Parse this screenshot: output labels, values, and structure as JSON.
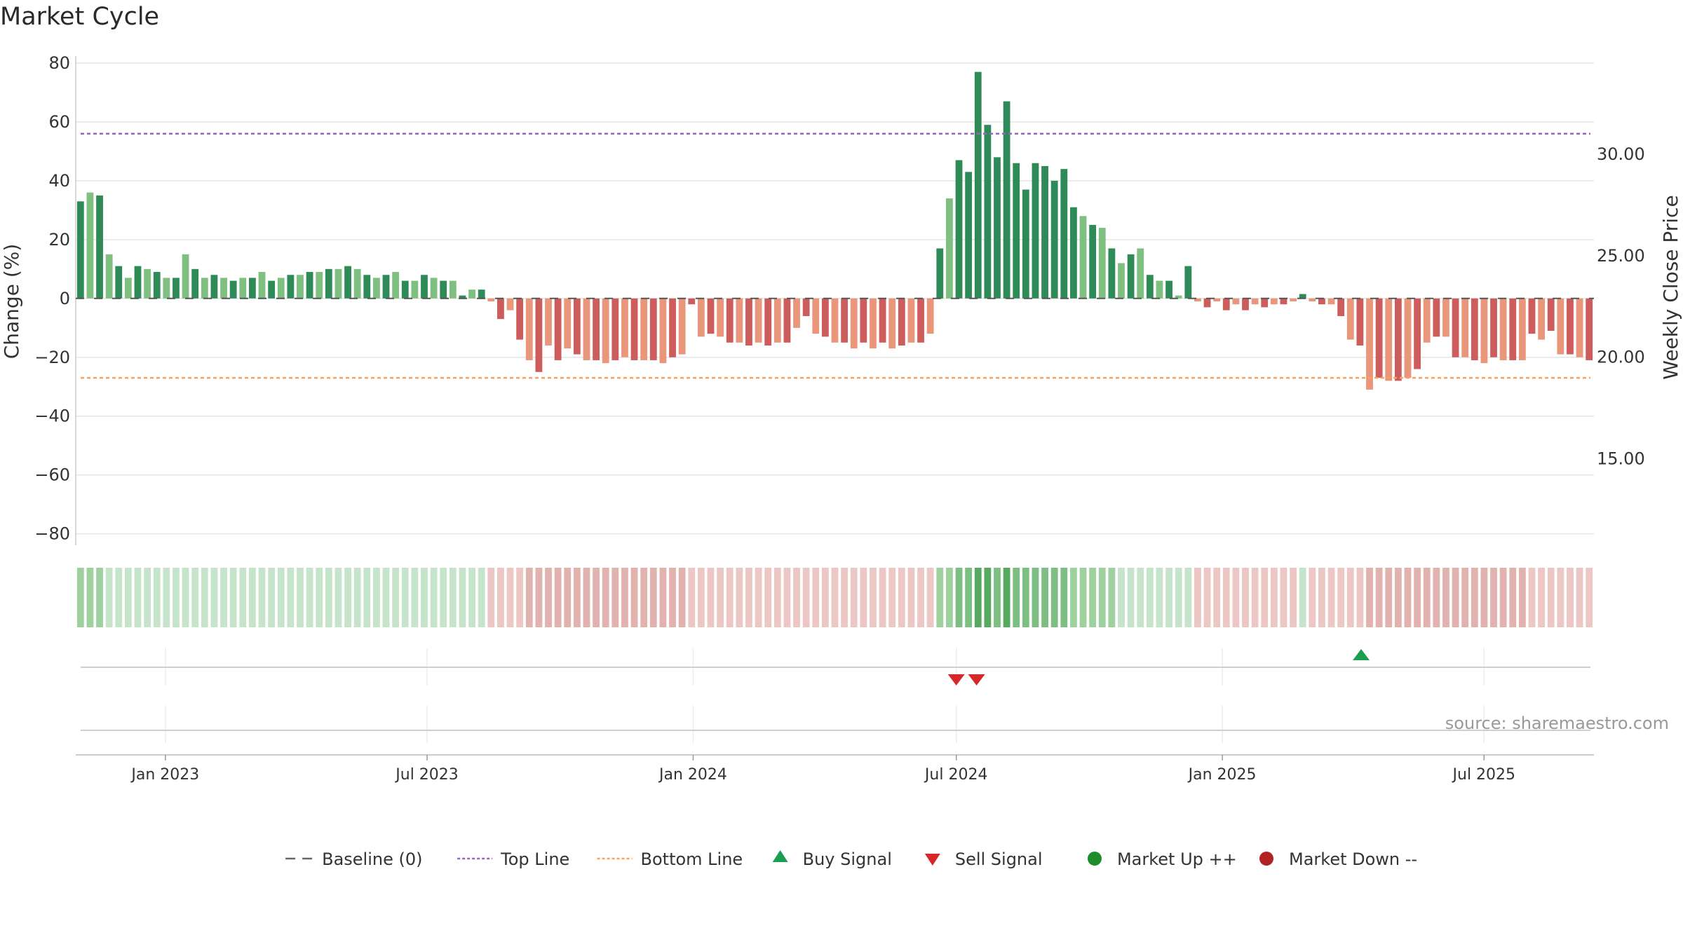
{
  "chart_data": {
    "type": "bar",
    "title": "Market Cycle",
    "ylabel": "Change (%)",
    "y2label": "Weekly Close Price",
    "ylim": [
      -82,
      80
    ],
    "y2lim": [
      11.0,
      34.5
    ],
    "yticks": [
      80,
      60,
      40,
      20,
      0,
      -20,
      -40,
      -60,
      -80
    ],
    "yticklabels": [
      "80",
      "60",
      "40",
      "20",
      "0",
      "−20",
      "−40",
      "−60",
      "−80"
    ],
    "y2ticks": [
      30,
      25,
      20,
      15
    ],
    "y2ticklabels": [
      "30.00",
      "25.00",
      "20.00",
      "15.00"
    ],
    "x_start": "2022-10-31",
    "x_end": "2025-09-15",
    "xticks": [
      {
        "date": "2023-01-01",
        "label": "Jan 2023"
      },
      {
        "date": "2023-07-01",
        "label": "Jul 2023"
      },
      {
        "date": "2024-01-01",
        "label": "Jan 2024"
      },
      {
        "date": "2024-07-01",
        "label": "Jul 2024"
      },
      {
        "date": "2025-01-01",
        "label": "Jan 2025"
      },
      {
        "date": "2025-07-01",
        "label": "Jul 2025"
      }
    ],
    "grid": true,
    "top_line": 56,
    "bottom_line": -27,
    "baseline": 0,
    "weekly_change": [
      33,
      36,
      35,
      15,
      11,
      7,
      11,
      10,
      9,
      7,
      7,
      15,
      10,
      7,
      8,
      7,
      6,
      7,
      7,
      9,
      6,
      7,
      8,
      8,
      9,
      9,
      10,
      10,
      11,
      10,
      8,
      7,
      8,
      9,
      6,
      6,
      8,
      7,
      6,
      6,
      1,
      3,
      3,
      -1,
      -7,
      -4,
      -14,
      -21,
      -25,
      -16,
      -21,
      -17,
      -19,
      -21,
      -21,
      -22,
      -21,
      -20,
      -21,
      -21,
      -21,
      -22,
      -20,
      -19,
      -2,
      -13,
      -12,
      -13,
      -15,
      -15,
      -16,
      -15,
      -16,
      -15,
      -15,
      -10,
      -6,
      -12,
      -13,
      -15,
      -15,
      -17,
      -15,
      -17,
      -15,
      -17,
      -16,
      -15,
      -15,
      -12,
      17,
      34,
      47,
      43,
      77,
      59,
      48,
      67,
      46,
      37,
      46,
      45,
      40,
      44,
      31,
      28,
      25,
      24,
      17,
      12,
      15,
      17,
      8,
      6,
      6,
      1,
      11,
      -1,
      -3,
      -1,
      -4,
      -2,
      -4,
      -2,
      -3,
      -2,
      -2,
      -1,
      1.5,
      -1,
      -2,
      -2,
      -6,
      -14,
      -16,
      -31,
      -27,
      -28,
      -28,
      -27,
      -24,
      -15,
      -13,
      -13,
      -20,
      -20,
      -21,
      -22,
      -20,
      -21,
      -21,
      -21,
      -12,
      -14,
      -11,
      -19,
      -19,
      -20,
      -21
    ],
    "trend_strength": [
      2,
      2,
      2,
      1,
      1,
      1,
      1,
      1,
      1,
      1,
      1,
      1,
      1,
      1,
      1,
      1,
      1,
      1,
      1,
      1,
      1,
      1,
      1,
      1,
      1,
      1,
      1,
      1,
      1,
      1,
      1,
      1,
      1,
      1,
      1,
      1,
      1,
      1,
      1,
      1,
      1,
      1,
      1,
      -1,
      -1,
      -1,
      -1,
      -2,
      -2,
      -2,
      -2,
      -2,
      -2,
      -2,
      -2,
      -2,
      -2,
      -2,
      -2,
      -2,
      -2,
      -2,
      -2,
      -2,
      -1,
      -1,
      -1,
      -1,
      -1,
      -1,
      -1,
      -1,
      -1,
      -1,
      -1,
      -1,
      -1,
      -1,
      -1,
      -1,
      -1,
      -1,
      -1,
      -1,
      -1,
      -1,
      -1,
      -1,
      -1,
      -1,
      2,
      2,
      3,
      3,
      4,
      4,
      3,
      4,
      3,
      3,
      3,
      3,
      3,
      3,
      2,
      2,
      2,
      2,
      2,
      1,
      1,
      1,
      1,
      1,
      1,
      1,
      1,
      -1,
      -1,
      -1,
      -1,
      -1,
      -1,
      -1,
      -1,
      -1,
      -1,
      -1,
      1,
      -1,
      -1,
      -1,
      -1,
      -1,
      -1,
      -2,
      -2,
      -2,
      -2,
      -2,
      -2,
      -2,
      -2,
      -2,
      -2,
      -2,
      -2,
      -2,
      -2,
      -2,
      -2,
      -2,
      -1,
      -1,
      -1,
      -1,
      -1,
      -1,
      -1
    ],
    "buy_signals": [
      "2025-04-07"
    ],
    "sell_signals": [
      "2024-07-01",
      "2024-07-15"
    ],
    "source_text": "source: sharemaestro.com",
    "legend_position": "bottom",
    "legend": [
      {
        "key": "baseline",
        "label": "Baseline (0)",
        "symbol": "dash",
        "color": "#666666"
      },
      {
        "key": "top",
        "label": "Top Line",
        "symbol": "dotted",
        "color": "#9467bd"
      },
      {
        "key": "bottom",
        "label": "Bottom Line",
        "symbol": "dotted",
        "color": "#f4a261"
      },
      {
        "key": "buy",
        "label": "Buy Signal",
        "symbol": "triangle-up",
        "color": "#1a9e50"
      },
      {
        "key": "sell",
        "label": "Sell Signal",
        "symbol": "triangle-down",
        "color": "#d62828"
      },
      {
        "key": "up",
        "label": "Market Up ++",
        "symbol": "circle",
        "color": "#1e8c2a"
      },
      {
        "key": "down",
        "label": "Market Down --",
        "symbol": "circle",
        "color": "#b22222"
      }
    ],
    "colors": {
      "up_dark": "#2e8b57",
      "up_light": "#7fbf7f",
      "down_dark": "#cd5c5c",
      "down_light": "#e9967a",
      "top_line": "#9467bd",
      "bottom_line": "#f4a261",
      "grid": "#e6e6e6"
    }
  }
}
